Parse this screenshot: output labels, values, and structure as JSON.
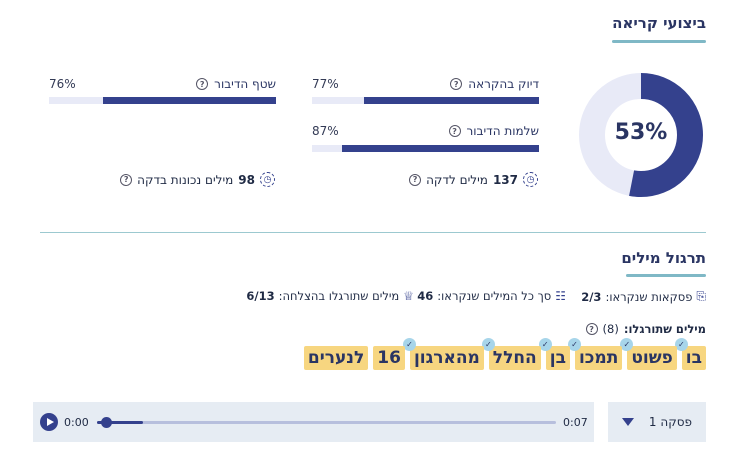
{
  "performance": {
    "title": "ביצועי קריאה",
    "overall_percent": 53,
    "overall_label": "53%",
    "metrics": {
      "accuracy": {
        "label": "דיוק בהקראה",
        "value_label": "77%",
        "value": 77
      },
      "fluency": {
        "label": "שטף הדיבור",
        "value_label": "76%",
        "value": 76
      },
      "completeness": {
        "label": "שלמות הדיבור",
        "value_label": "87%",
        "value": 87
      }
    },
    "stats": {
      "wpm_value": "137",
      "wpm_label": "מילים לדקה",
      "wcpm_value": "98",
      "wcpm_label": "מילים נכונות בדקה"
    },
    "help_glyph": "?"
  },
  "practice": {
    "title": "תרגול מילים",
    "summary": {
      "passages_label": "פסקאות שנקראו:",
      "passages_value": "2/3",
      "total_words_label": "סך כל המילים שנקראו:",
      "total_words_value": "46",
      "success_label": "מילים שתורגלו בהצלחה:",
      "success_value": "6/13"
    },
    "practiced_label": "מילים שתורגלו:",
    "practiced_count": "(8)",
    "words": [
      {
        "text": "בו",
        "checked": true
      },
      {
        "text": "פשוט",
        "checked": true
      },
      {
        "text": "תמכו",
        "checked": true
      },
      {
        "text": "בן",
        "checked": true
      },
      {
        "text": "החלל",
        "checked": true
      },
      {
        "text": "מהארגון",
        "checked": true
      },
      {
        "text": "16",
        "checked": false
      },
      {
        "text": "לנערים",
        "checked": false
      }
    ],
    "check_glyph": "✓"
  },
  "player": {
    "current_time": "0:00",
    "total_time": "0:07",
    "progress": 0.02,
    "buffered": 0.1
  },
  "passage_select": {
    "selected": "פסקה 1"
  },
  "colors": {
    "accent": "#34418d",
    "track": "#e8eaf7",
    "highlight": "#f7d680"
  }
}
